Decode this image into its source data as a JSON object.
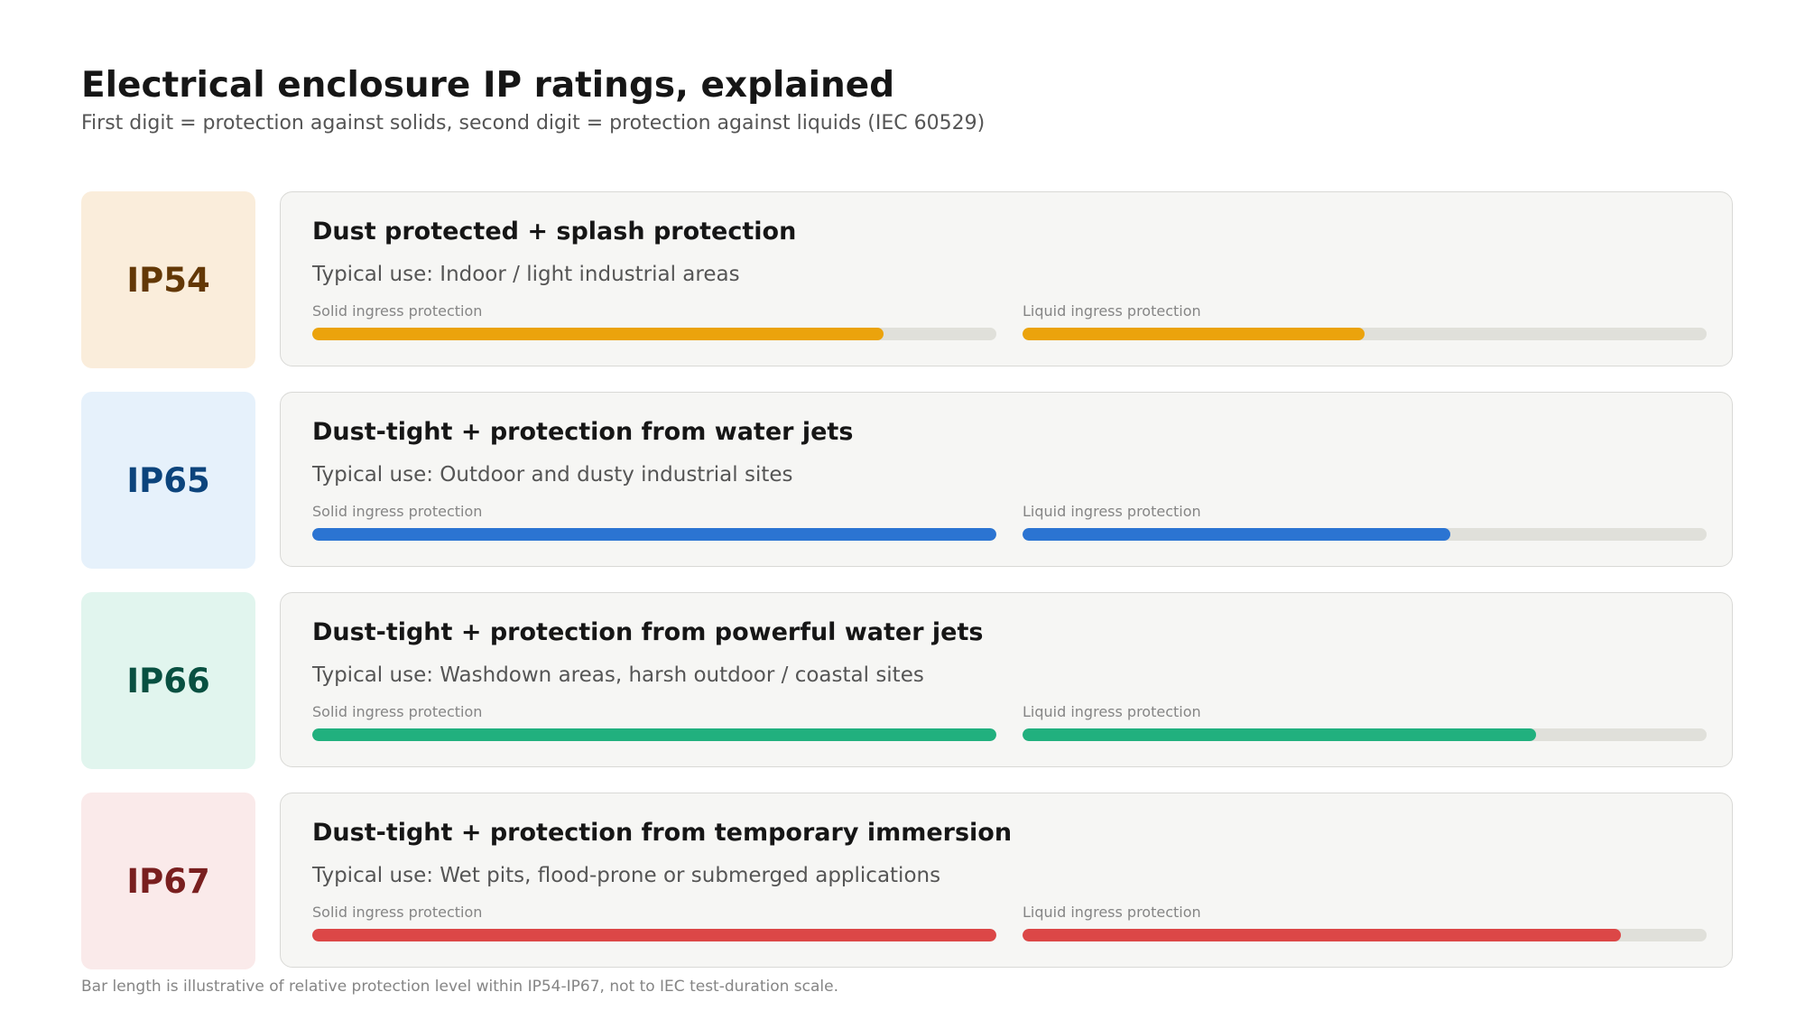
{
  "header": {
    "title": "Electrical enclosure IP ratings, explained",
    "subtitle": "First digit = protection against solids, second digit = protection against liquids (IEC 60529)"
  },
  "ratings": [
    {
      "code": "IP54",
      "title": "Dust protected + splash protection",
      "use": "Typical use: Indoor / light industrial areas",
      "solid_label": "Solid ingress protection",
      "liquid_label": "Liquid ingress protection",
      "solid_level": 0.835,
      "liquid_level": 0.5,
      "badge_bg": "#faeddb",
      "code_color": "#633806",
      "bar_color": "#eba30c"
    },
    {
      "code": "IP65",
      "title": "Dust-tight + protection from water jets",
      "use": "Typical use: Outdoor and dusty industrial sites",
      "solid_label": "Solid ingress protection",
      "liquid_label": "Liquid ingress protection",
      "solid_level": 1.0,
      "liquid_level": 0.625,
      "badge_bg": "#e6f1fb",
      "code_color": "#0c447c",
      "bar_color": "#2b74d2"
    },
    {
      "code": "IP66",
      "title": "Dust-tight + protection from powerful water jets",
      "use": "Typical use: Washdown areas, harsh outdoor / coastal sites",
      "solid_label": "Solid ingress protection",
      "liquid_label": "Liquid ingress protection",
      "solid_level": 1.0,
      "liquid_level": 0.75,
      "badge_bg": "#e1f5ee",
      "code_color": "#085041",
      "bar_color": "#21b07e"
    },
    {
      "code": "IP67",
      "title": "Dust-tight + protection from temporary immersion",
      "use": "Typical use: Wet pits, flood-prone or submerged applications",
      "solid_label": "Solid ingress protection",
      "liquid_label": "Liquid ingress protection",
      "solid_level": 1.0,
      "liquid_level": 0.875,
      "badge_bg": "#faeaea",
      "code_color": "#791f1f",
      "bar_color": "#dc4747"
    }
  ],
  "footnote": "Bar length is illustrative of relative protection level within IP54-IP67, not to IEC test-duration scale."
}
